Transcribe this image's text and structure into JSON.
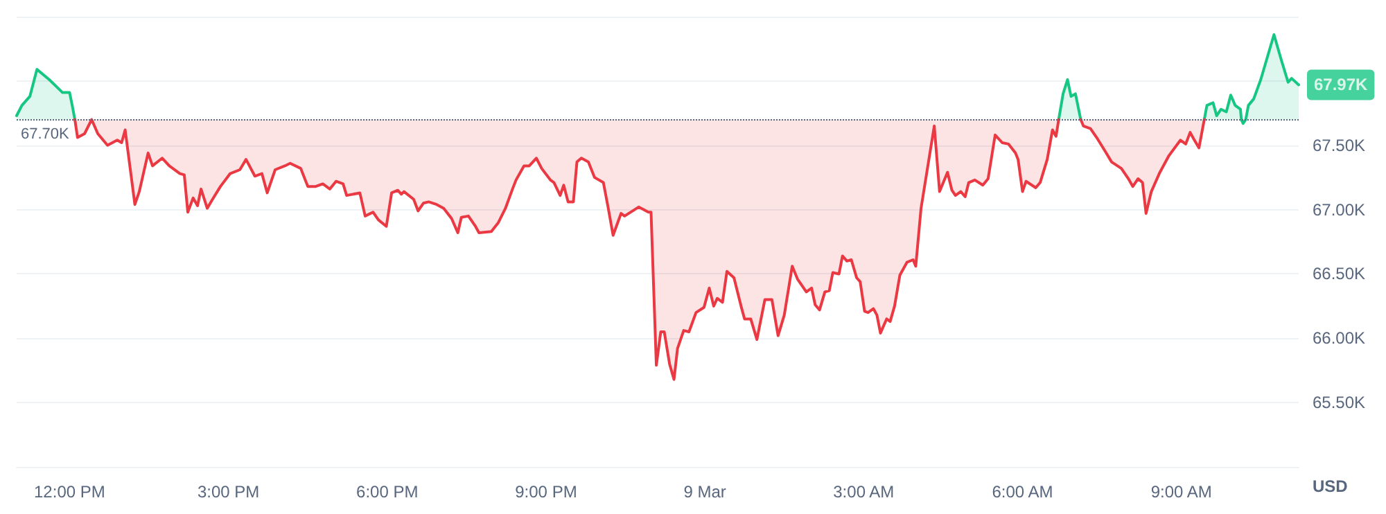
{
  "chart_data": {
    "type": "line",
    "ylabel": "USD",
    "xlim": [
      "--03-08T11:00",
      "--03-09T11:13"
    ],
    "ylim": [
      65000,
      68500
    ],
    "xticks": [
      {
        "value": "--03-08T12:00",
        "label": "12:00 PM"
      },
      {
        "value": "--03-08T15:00",
        "label": "3:00 PM"
      },
      {
        "value": "--03-08T18:00",
        "label": "6:00 PM"
      },
      {
        "value": "--03-08T21:00",
        "label": "9:00 PM"
      },
      {
        "value": "--03-09T00:00",
        "label": "9 Mar"
      },
      {
        "value": "--03-09T03:00",
        "label": "3:00 AM"
      },
      {
        "value": "--03-09T06:00",
        "label": "6:00 AM"
      },
      {
        "value": "--03-09T09:00",
        "label": "9:00 AM"
      }
    ],
    "yticks": [
      {
        "value": 65500,
        "label": "65.50K"
      },
      {
        "value": 66000,
        "label": "66.00K"
      },
      {
        "value": 66500,
        "label": "66.50K"
      },
      {
        "value": 67000,
        "label": "67.00K"
      },
      {
        "value": 67500,
        "label": "67.50K"
      },
      {
        "value": 68000,
        "label": null
      },
      {
        "value": 68500,
        "label": null
      }
    ],
    "grid": "y",
    "marker": "none",
    "line_style": "solid",
    "ref_lines": [
      {
        "axis": "y",
        "value": 67700,
        "label": "67.70K",
        "color": "#58667e",
        "line_style": "dotted"
      }
    ],
    "annotations": [
      {
        "text": "67.97K",
        "x": "--03-09T11:13",
        "y": 67970
      }
    ],
    "series": [
      {
        "color": "#16c784",
        "x": [
          "--03-08T11:00",
          "--03-08T11:06",
          "--03-08T11:15",
          "--03-08T11:23",
          "--03-08T11:37",
          "--03-08T11:46",
          "--03-08T11:52",
          "--03-08T12:00",
          "--03-08T12:03",
          "--03-08T12:06",
          "--03-08T12:09",
          "--03-09T06:41",
          "--03-09T06:46",
          "--03-09T06:51",
          "--03-09T06:55",
          "--03-09T07:00",
          "--03-09T07:06",
          "--03-09T07:09",
          "--03-09T09:26",
          "--03-09T09:29",
          "--03-09T09:36",
          "--03-09T09:40",
          "--03-09T09:45",
          "--03-09T09:51",
          "--03-09T09:56",
          "--03-09T10:01",
          "--03-09T10:07",
          "--03-09T10:08",
          "--03-09T10:10",
          "--03-09T10:13",
          "--03-09T10:16",
          "--03-09T10:22",
          "--03-09T10:30",
          "--03-09T10:45",
          "--03-09T10:53",
          "--03-09T11:01",
          "--03-09T11:05",
          "--03-09T11:13"
        ],
        "values": [
          67730,
          67810,
          67880,
          68090,
          68010,
          67950,
          67910,
          67910,
          67810,
          67700,
          null,
          67700,
          67900,
          68010,
          67880,
          67900,
          67700,
          null,
          67700,
          67810,
          67830,
          67730,
          67780,
          67760,
          67890,
          67810,
          67780,
          67700,
          67670,
          67700,
          67810,
          67860,
          68010,
          68360,
          68170,
          67990,
          68020,
          67970
        ],
        "upper": [
          67730,
          67810,
          67880,
          68090,
          68010,
          67950,
          67910,
          67910,
          67810,
          67700,
          null,
          67700,
          67900,
          68010,
          67880,
          67900,
          67700,
          null,
          67700,
          67810,
          67830,
          67730,
          67780,
          67760,
          67890,
          67810,
          67780,
          67700,
          67670,
          67700,
          67810,
          67860,
          68010,
          68360,
          68170,
          67990,
          68020,
          67970
        ],
        "lower": [
          67700,
          67700,
          67700,
          67700,
          67700,
          67700,
          67700,
          67700,
          67700,
          67700,
          null,
          67700,
          67700,
          67700,
          67700,
          67700,
          67700,
          null,
          67700,
          67700,
          67700,
          67700,
          67700,
          67700,
          67700,
          67700,
          67700,
          67700,
          67700,
          67700,
          67700,
          67700,
          67700,
          67700,
          67700,
          67700,
          67700,
          67700
        ]
      },
      {
        "color": "#ea3943",
        "x": [
          "--03-08T12:06",
          "--03-08T12:09",
          "--03-08T12:17",
          "--03-08T12:25",
          "--03-08T12:32",
          "--03-08T12:43",
          "--03-08T12:54",
          "--03-08T12:59",
          "--03-08T13:03",
          "--03-08T13:14",
          "--03-08T13:19",
          "--03-08T13:29",
          "--03-08T13:34",
          "--03-08T13:45",
          "--03-08T13:53",
          "--03-08T14:05",
          "--03-08T14:10",
          "--03-08T14:14",
          "--03-08T14:20",
          "--03-08T14:25",
          "--03-08T14:29",
          "--03-08T14:36",
          "--03-08T14:42",
          "--03-08T14:51",
          "--03-08T15:02",
          "--03-08T15:13",
          "--03-08T15:20",
          "--03-08T15:30",
          "--03-08T15:38",
          "--03-08T15:44",
          "--03-08T15:53",
          "--03-08T16:04",
          "--03-08T16:10",
          "--03-08T16:22",
          "--03-08T16:30",
          "--03-08T16:39",
          "--03-08T16:47",
          "--03-08T16:55",
          "--03-08T17:02",
          "--03-08T17:10",
          "--03-08T17:14",
          "--03-08T17:29",
          "--03-08T17:35",
          "--03-08T17:44",
          "--03-08T17:50",
          "--03-08T17:59",
          "--03-08T18:05",
          "--03-08T18:12",
          "--03-08T18:16",
          "--03-08T18:19",
          "--03-08T18:30",
          "--03-08T18:35",
          "--03-08T18:41",
          "--03-08T18:47",
          "--03-08T18:56",
          "--03-08T19:04",
          "--03-08T19:13",
          "--03-08T19:20",
          "--03-08T19:24",
          "--03-08T19:32",
          "--03-08T19:40",
          "--03-08T19:44",
          "--03-08T19:58",
          "--03-08T20:06",
          "--03-08T20:14",
          "--03-08T20:22",
          "--03-08T20:26",
          "--03-08T20:35",
          "--03-08T20:41",
          "--03-08T20:49",
          "--03-08T20:55",
          "--03-08T21:05",
          "--03-08T21:09",
          "--03-08T21:16",
          "--03-08T21:20",
          "--03-08T21:25",
          "--03-08T21:31",
          "--03-08T21:35",
          "--03-08T21:40",
          "--03-08T21:48",
          "--03-08T21:55",
          "--03-08T22:05",
          "--03-08T22:10",
          "--03-08T22:16",
          "--03-08T22:25",
          "--03-08T22:29",
          "--03-08T22:45",
          "--03-08T22:56",
          "--03-08T22:59",
          "--03-08T23:05",
          "--03-08T23:10",
          "--03-08T23:14",
          "--03-08T23:20",
          "--03-08T23:25",
          "--03-08T23:29",
          "--03-08T23:36",
          "--03-08T23:42",
          "--03-08T23:50",
          "--03-08T23:59",
          "--03-09T00:05",
          "--03-09T00:10",
          "--03-09T00:14",
          "--03-09T00:20",
          "--03-09T00:25",
          "--03-09T00:33",
          "--03-09T00:41",
          "--03-09T00:45",
          "--03-09T00:52",
          "--03-09T00:59",
          "--03-09T01:08",
          "--03-09T01:16",
          "--03-09T01:23",
          "--03-09T01:30",
          "--03-09T01:39",
          "--03-09T01:45",
          "--03-09T01:55",
          "--03-09T02:01",
          "--03-09T02:05",
          "--03-09T02:10",
          "--03-09T02:16",
          "--03-09T02:21",
          "--03-09T02:25",
          "--03-09T02:32",
          "--03-09T02:36",
          "--03-09T02:41",
          "--03-09T02:46",
          "--03-09T02:52",
          "--03-09T02:56",
          "--03-09T03:01",
          "--03-09T03:05",
          "--03-09T03:11",
          "--03-09T03:15",
          "--03-09T03:19",
          "--03-09T03:26",
          "--03-09T03:30",
          "--03-09T03:35",
          "--03-09T03:41",
          "--03-09T03:49",
          "--03-09T03:56",
          "--03-09T03:59",
          "--03-09T04:05",
          "--03-09T04:20",
          "--03-09T04:26",
          "--03-09T04:35",
          "--03-09T04:40",
          "--03-09T04:44",
          "--03-09T04:50",
          "--03-09T04:55",
          "--03-09T04:59",
          "--03-09T05:06",
          "--03-09T05:15",
          "--03-09T05:21",
          "--03-09T05:29",
          "--03-09T05:37",
          "--03-09T05:44",
          "--03-09T05:52",
          "--03-09T05:55",
          "--03-09T06:00",
          "--03-09T06:04",
          "--03-09T06:15",
          "--03-09T06:20",
          "--03-09T06:28",
          "--03-09T06:34",
          "--03-09T06:38",
          "--03-09T06:41",
          "--03-09T06:46",
          "--03-09T07:06",
          "--03-09T07:09",
          "--03-09T07:17",
          "--03-09T07:25",
          "--03-09T07:34",
          "--03-09T07:41",
          "--03-09T07:52",
          "--03-09T08:00",
          "--03-09T08:05",
          "--03-09T08:11",
          "--03-09T08:16",
          "--03-09T08:20",
          "--03-09T08:26",
          "--03-09T08:35",
          "--03-09T08:46",
          "--03-09T08:59",
          "--03-09T09:05",
          "--03-09T09:10",
          "--03-09T09:14",
          "--03-09T09:20",
          "--03-09T09:26"
        ],
        "values": [
          67700,
          67560,
          67590,
          67700,
          67590,
          67500,
          67540,
          67520,
          67620,
          67040,
          67140,
          67440,
          67340,
          67400,
          67340,
          67280,
          67270,
          66980,
          67090,
          67030,
          67160,
          67010,
          67080,
          67180,
          67280,
          67310,
          67390,
          67260,
          67280,
          67130,
          67310,
          67340,
          67360,
          67320,
          67180,
          67180,
          67200,
          67160,
          67220,
          67200,
          67110,
          67130,
          66950,
          66980,
          66920,
          66870,
          67130,
          67150,
          67120,
          67140,
          67080,
          66990,
          67050,
          67060,
          67040,
          67010,
          66930,
          66820,
          66940,
          66950,
          66870,
          66820,
          66830,
          66900,
          67010,
          67160,
          67230,
          67340,
          67340,
          67400,
          67320,
          67230,
          67210,
          67110,
          67190,
          67060,
          67060,
          67370,
          67400,
          67370,
          67250,
          67210,
          67030,
          66800,
          66970,
          66950,
          67020,
          66980,
          66980,
          65790,
          66050,
          66050,
          65800,
          65680,
          65920,
          66060,
          66050,
          66200,
          66240,
          66390,
          66250,
          66310,
          66280,
          66520,
          66470,
          66250,
          66150,
          66150,
          65990,
          66300,
          66300,
          66020,
          66180,
          66560,
          66460,
          66360,
          66390,
          66260,
          66220,
          66360,
          66370,
          66510,
          66500,
          66640,
          66600,
          66610,
          66470,
          66440,
          66210,
          66200,
          66230,
          66180,
          66040,
          66150,
          66130,
          66250,
          66490,
          66590,
          66610,
          66560,
          67010,
          67650,
          67140,
          67290,
          67150,
          67110,
          67140,
          67100,
          67210,
          67230,
          67190,
          67240,
          67580,
          67520,
          67510,
          67440,
          67390,
          67140,
          67220,
          67170,
          67210,
          67390,
          67620,
          67570,
          67700,
          null,
          67700,
          67650,
          67630,
          67550,
          67450,
          67370,
          67320,
          67240,
          67180,
          67240,
          67210,
          66970,
          67140,
          67280,
          67420,
          67540,
          67510,
          67600,
          67550,
          67480,
          67700
        ],
        "lower": [
          67700,
          67560,
          67590,
          67700,
          67590,
          67500,
          67540,
          67520,
          67620,
          67040,
          67140,
          67440,
          67340,
          67400,
          67340,
          67280,
          67270,
          66980,
          67090,
          67030,
          67160,
          67010,
          67080,
          67180,
          67280,
          67310,
          67390,
          67260,
          67280,
          67130,
          67310,
          67340,
          67360,
          67320,
          67180,
          67180,
          67200,
          67160,
          67220,
          67200,
          67110,
          67130,
          66950,
          66980,
          66920,
          66870,
          67130,
          67150,
          67120,
          67140,
          67080,
          66990,
          67050,
          67060,
          67040,
          67010,
          66930,
          66820,
          66940,
          66950,
          66870,
          66820,
          66830,
          66900,
          67010,
          67160,
          67230,
          67340,
          67340,
          67400,
          67320,
          67230,
          67210,
          67110,
          67190,
          67060,
          67060,
          67370,
          67400,
          67370,
          67250,
          67210,
          67030,
          66800,
          66970,
          66950,
          67020,
          66980,
          66980,
          65790,
          66050,
          66050,
          65800,
          65680,
          65920,
          66060,
          66050,
          66200,
          66240,
          66390,
          66250,
          66310,
          66280,
          66520,
          66470,
          66250,
          66150,
          66150,
          65990,
          66300,
          66300,
          66020,
          66180,
          66560,
          66460,
          66360,
          66390,
          66260,
          66220,
          66360,
          66370,
          66510,
          66500,
          66640,
          66600,
          66610,
          66470,
          66440,
          66210,
          66200,
          66230,
          66180,
          66040,
          66150,
          66130,
          66250,
          66490,
          66590,
          66610,
          66560,
          67010,
          67650,
          67140,
          67290,
          67150,
          67110,
          67140,
          67100,
          67210,
          67230,
          67190,
          67240,
          67580,
          67520,
          67510,
          67440,
          67390,
          67140,
          67220,
          67170,
          67210,
          67390,
          67620,
          67570,
          67700,
          null,
          67700,
          67650,
          67630,
          67550,
          67450,
          67370,
          67320,
          67240,
          67180,
          67240,
          67210,
          66970,
          67140,
          67280,
          67420,
          67540,
          67510,
          67600,
          67550,
          67480,
          67700
        ],
        "upper": [
          67700,
          67700,
          67700,
          67700,
          67700,
          67700,
          67700,
          67700,
          67700,
          67700,
          67700,
          67700,
          67700,
          67700,
          67700,
          67700,
          67700,
          67700,
          67700,
          67700,
          67700,
          67700,
          67700,
          67700,
          67700,
          67700,
          67700,
          67700,
          67700,
          67700,
          67700,
          67700,
          67700,
          67700,
          67700,
          67700,
          67700,
          67700,
          67700,
          67700,
          67700,
          67700,
          67700,
          67700,
          67700,
          67700,
          67700,
          67700,
          67700,
          67700,
          67700,
          67700,
          67700,
          67700,
          67700,
          67700,
          67700,
          67700,
          67700,
          67700,
          67700,
          67700,
          67700,
          67700,
          67700,
          67700,
          67700,
          67700,
          67700,
          67700,
          67700,
          67700,
          67700,
          67700,
          67700,
          67700,
          67700,
          67700,
          67700,
          67700,
          67700,
          67700,
          67700,
          67700,
          67700,
          67700,
          67700,
          67700,
          67700,
          67700,
          67700,
          67700,
          67700,
          67700,
          67700,
          67700,
          67700,
          67700,
          67700,
          67700,
          67700,
          67700,
          67700,
          67700,
          67700,
          67700,
          67700,
          67700,
          67700,
          67700,
          67700,
          67700,
          67700,
          67700,
          67700,
          67700,
          67700,
          67700,
          67700,
          67700,
          67700,
          67700,
          67700,
          67700,
          67700,
          67700,
          67700,
          67700,
          67700,
          67700,
          67700,
          67700,
          67700,
          67700,
          67700,
          67700,
          67700,
          67700,
          67700,
          67700,
          67700,
          67700,
          67700,
          67700,
          67700,
          67700,
          67700,
          67700,
          67700,
          67700,
          67700,
          67700,
          67700,
          67700,
          67700,
          67700,
          67700,
          67700,
          67700,
          67700,
          67700,
          67700,
          67700,
          67700,
          67700,
          null,
          67700,
          67700,
          67700,
          67700,
          67700,
          67700,
          67700,
          67700,
          67700,
          67700,
          67700,
          67700,
          67700,
          67700,
          67700,
          67700,
          67700,
          67700,
          67700,
          67700,
          67700
        ]
      }
    ]
  }
}
